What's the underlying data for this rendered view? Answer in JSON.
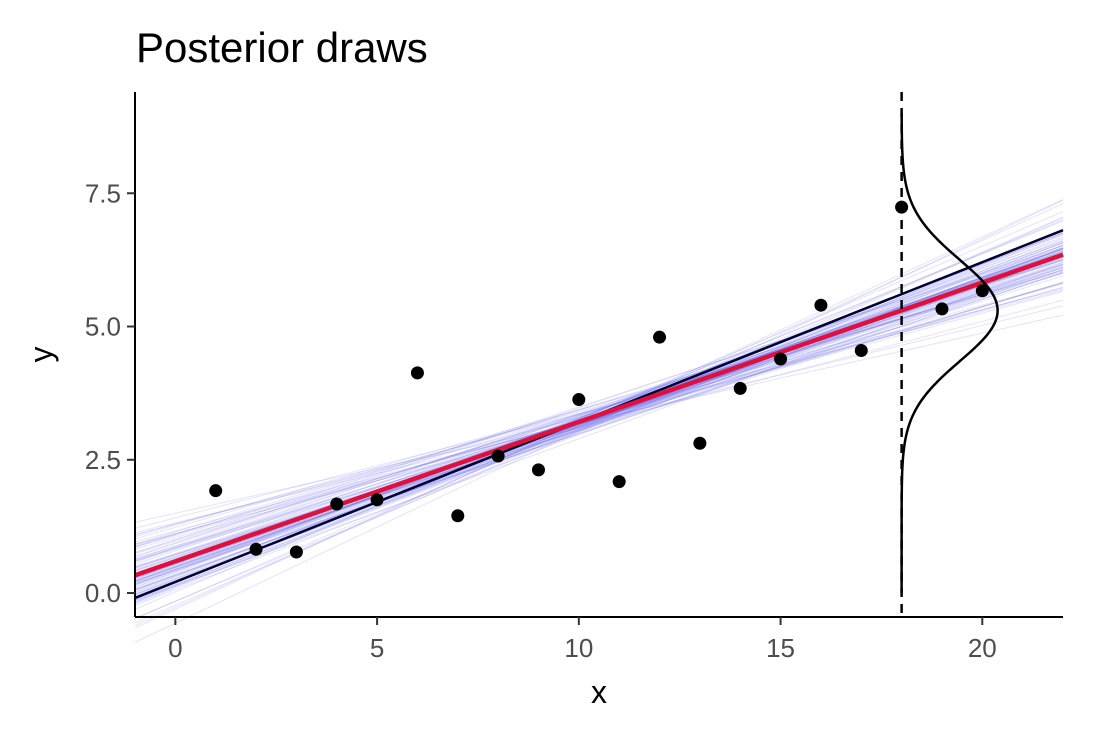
{
  "chart_data": {
    "type": "scatter",
    "title": "Posterior draws",
    "xlabel": "x",
    "ylabel": "y",
    "xlim": [
      -1,
      22
    ],
    "ylim": [
      -0.45,
      9.4
    ],
    "x_ticks": [
      0,
      5,
      10,
      15,
      20
    ],
    "x_tick_labels": [
      "0",
      "5",
      "10",
      "15",
      "20"
    ],
    "y_ticks": [
      0,
      2.5,
      5,
      7.5
    ],
    "y_tick_labels": [
      "0.0",
      "2.5",
      "5.0",
      "7.5"
    ],
    "grid": false,
    "points": {
      "x": [
        1,
        2,
        3,
        4,
        5,
        6,
        7,
        8,
        9,
        10,
        11,
        12,
        13,
        14,
        15,
        16,
        17,
        18,
        19,
        20
      ],
      "y": [
        1.92,
        0.82,
        0.77,
        1.67,
        1.75,
        4.13,
        1.45,
        2.57,
        2.31,
        3.63,
        2.09,
        4.8,
        2.81,
        3.84,
        4.39,
        5.4,
        4.55,
        7.24,
        5.33,
        5.67
      ],
      "color": "#000000"
    },
    "true_line": {
      "intercept": 0.207,
      "slope": 0.3,
      "color": "#000033"
    },
    "posterior_mean_line": {
      "intercept": 0.595,
      "slope": 0.2615,
      "color": "#e0103c"
    },
    "posterior_draws": {
      "count": 100,
      "color": "#6666ee",
      "intercept_center": 0.595,
      "intercept_sd": 0.45,
      "slope_center": 0.2615,
      "slope_sd": 0.035
    },
    "prediction_density": {
      "x": 18,
      "mean": 5.3,
      "sd": 0.95,
      "y_range": [
        0,
        9.0
      ],
      "curve_color": "#000000",
      "line_style": "dashed"
    }
  }
}
